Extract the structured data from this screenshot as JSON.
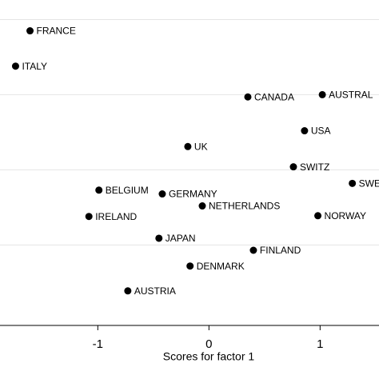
{
  "chart_data": {
    "type": "scatter",
    "x_label": "Scores for factor 1",
    "labels": [
      "FRANCE",
      "ITALY",
      "CANADA",
      "AUSTRAL",
      "USA",
      "UK",
      "SWITZ",
      "SWE",
      "BELGIUM",
      "GERMANY",
      "NETHERLANDS",
      "IRELAND",
      "NORWAY",
      "JAPAN",
      "FINLAND",
      "DENMARK",
      "AUSTRIA"
    ],
    "x": [
      -1.61,
      -1.74,
      0.35,
      1.02,
      0.86,
      -0.19,
      0.76,
      1.29,
      -0.99,
      -0.42,
      -0.06,
      -1.08,
      0.98,
      -0.45,
      0.4,
      -0.17,
      -0.73
    ],
    "y": [
      1.85,
      1.38,
      0.97,
      1.0,
      0.52,
      0.31,
      0.04,
      -0.18,
      -0.27,
      -0.32,
      -0.48,
      -0.62,
      -0.61,
      -0.91,
      -1.07,
      -1.28,
      -1.61
    ],
    "color": "#000000",
    "xlim": [
      -1.88,
      1.53
    ],
    "xticks": [
      -1,
      0,
      1
    ],
    "ylim": [
      -2.07,
      2.26
    ],
    "yticks": [
      -1,
      0,
      1,
      2
    ],
    "grid": true
  }
}
